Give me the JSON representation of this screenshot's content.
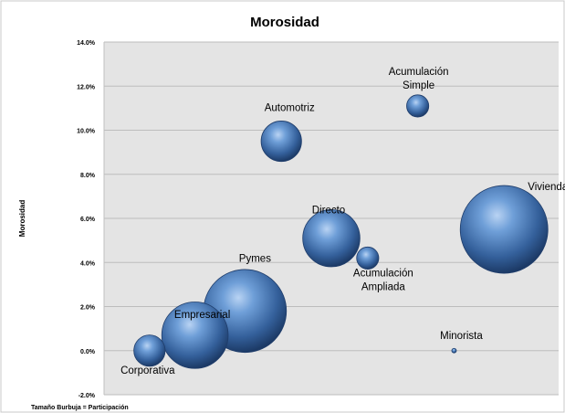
{
  "chart_data": {
    "type": "scatter",
    "title": "Morosidad",
    "ylabel": "Morosidad",
    "xlabel": "",
    "footnote": "Tamaño Burbuja = Participación",
    "ylim": [
      -2.0,
      14.0
    ],
    "y_ticks": [
      "-2.0%",
      "0.0%",
      "2.0%",
      "4.0%",
      "6.0%",
      "8.0%",
      "10.0%",
      "12.0%",
      "14.0%"
    ],
    "y_tick_values": [
      -2,
      0,
      2,
      4,
      6,
      8,
      10,
      12,
      14
    ],
    "xlim": [
      0,
      100
    ],
    "grid": true,
    "bubble_color": "#4f81bd",
    "series": [
      {
        "label": "Corporativa",
        "x": 10,
        "y": 0.0,
        "size": 6
      },
      {
        "label": "Empresarial",
        "x": 20,
        "y": 0.7,
        "size": 27
      },
      {
        "label": "Pymes",
        "x": 31,
        "y": 1.8,
        "size": 42
      },
      {
        "label": "Directo",
        "x": 50,
        "y": 5.1,
        "size": 20
      },
      {
        "label": "Acumulación Ampliada",
        "x": 58,
        "y": 4.2,
        "size": 3
      },
      {
        "label": "Automotriz",
        "x": 39,
        "y": 9.5,
        "size": 10
      },
      {
        "label": "Acumulación Simple",
        "x": 69,
        "y": 11.1,
        "size": 3
      },
      {
        "label": "Vivienda",
        "x": 88,
        "y": 5.5,
        "size": 47
      },
      {
        "label": "Minorista",
        "x": 77,
        "y": 0.0,
        "size": 0.1
      }
    ],
    "point_labels": {
      "Corporativa": "Corporativa",
      "Empresarial": "Empresarial",
      "Pymes": "Pymes",
      "Directo": "Directo",
      "Acumulación Ampliada": [
        "Acumulación",
        "Ampliada"
      ],
      "Automotriz": "Automotriz",
      "Acumulación Simple": [
        "Acumulación",
        "Simple"
      ],
      "Vivienda": "Vivienda",
      "Minorista": "Minorista"
    }
  }
}
